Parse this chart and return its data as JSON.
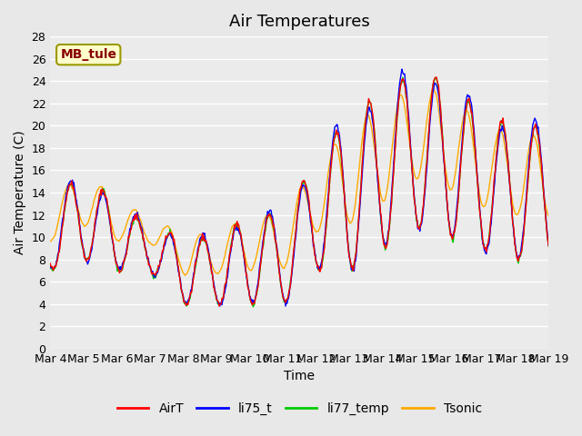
{
  "title": "Air Temperatures",
  "xlabel": "Time",
  "ylabel": "Air Temperature (C)",
  "ylim": [
    0,
    28
  ],
  "yticks": [
    0,
    2,
    4,
    6,
    8,
    10,
    12,
    14,
    16,
    18,
    20,
    22,
    24,
    26,
    28
  ],
  "annotation_text": "MB_tule",
  "annotation_bg": "#ffffcc",
  "annotation_edge": "#999900",
  "annotation_text_color": "#880000",
  "line_colors": {
    "AirT": "#ff0000",
    "li75_t": "#0000ff",
    "li77_temp": "#00cc00",
    "Tsonic": "#ffaa00"
  },
  "line_width": 1.0,
  "background_color": "#e8e8e8",
  "plot_bg": "#ebebeb",
  "grid_color": "#ffffff",
  "xtick_labels": [
    "Mar 4",
    "Mar 5",
    "Mar 6",
    "Mar 7",
    "Mar 8",
    "Mar 9",
    "Mar 10",
    "Mar 11",
    "Mar 12",
    "Mar 13",
    "Mar 14",
    "Mar 15",
    "Mar 16",
    "Mar 17",
    "Mar 18",
    "Mar 19"
  ],
  "n_days": 15,
  "legend_items": [
    "AirT",
    "li75_t",
    "li77_temp",
    "Tsonic"
  ],
  "title_fontsize": 13,
  "axis_label_fontsize": 10,
  "tick_fontsize": 9
}
